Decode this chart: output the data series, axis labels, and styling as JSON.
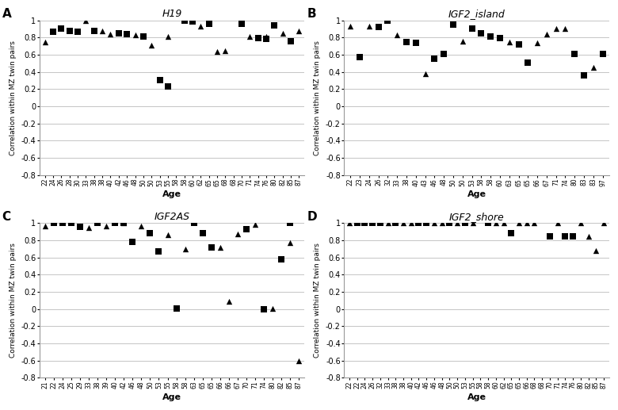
{
  "panels": [
    {
      "label": "A",
      "title": "H19",
      "x_labels": [
        "22",
        "24",
        "26",
        "28",
        "30",
        "33",
        "38",
        "38",
        "40",
        "42",
        "46",
        "48",
        "50",
        "50",
        "53",
        "55",
        "58",
        "58",
        "60",
        "62",
        "65",
        "65",
        "68",
        "68",
        "70",
        "71",
        "74",
        "76",
        "80",
        "82",
        "85",
        "87"
      ],
      "squares": [
        null,
        0.87,
        0.9,
        0.88,
        0.87,
        null,
        0.88,
        null,
        null,
        0.85,
        0.84,
        null,
        0.81,
        null,
        0.3,
        0.23,
        null,
        1.0,
        0.99,
        null,
        0.96,
        null,
        null,
        null,
        0.96,
        null,
        0.79,
        0.78,
        0.94,
        null,
        0.76,
        null
      ],
      "triangles": [
        0.75,
        null,
        null,
        null,
        null,
        1.0,
        null,
        0.88,
        0.84,
        null,
        null,
        0.83,
        null,
        0.71,
        null,
        0.81,
        null,
        null,
        null,
        0.93,
        null,
        0.64,
        0.65,
        null,
        null,
        0.81,
        null,
        0.81,
        null,
        0.85,
        null,
        0.88
      ]
    },
    {
      "label": "B",
      "title": "IGF2_island",
      "x_labels": [
        "22",
        "23",
        "24",
        "26",
        "32",
        "33",
        "38",
        "40",
        "43",
        "46",
        "48",
        "50",
        "50",
        "53",
        "58",
        "58",
        "60",
        "63",
        "65",
        "65",
        "66",
        "67",
        "71",
        "74",
        "80",
        "83",
        "83",
        "97"
      ],
      "squares": [
        null,
        0.57,
        null,
        0.92,
        1.0,
        null,
        0.75,
        0.74,
        null,
        0.55,
        0.61,
        0.95,
        null,
        0.9,
        0.85,
        0.81,
        0.79,
        null,
        0.72,
        0.51,
        null,
        null,
        null,
        null,
        0.61,
        0.36,
        null,
        0.61
      ],
      "triangles": [
        0.93,
        null,
        0.93,
        null,
        null,
        0.83,
        null,
        null,
        0.38,
        null,
        null,
        null,
        0.76,
        null,
        null,
        null,
        null,
        0.75,
        null,
        null,
        0.74,
        0.84,
        0.9,
        0.9,
        null,
        null,
        0.45,
        null
      ]
    },
    {
      "label": "C",
      "title": "IGF2AS",
      "x_labels": [
        "21",
        "22",
        "24",
        "25",
        "29",
        "33",
        "38",
        "39",
        "40",
        "42",
        "46",
        "48",
        "50",
        "53",
        "55",
        "58",
        "58",
        "63",
        "65",
        "65",
        "66",
        "66",
        "67",
        "70",
        "71",
        "74",
        "80",
        "82",
        "85",
        "87"
      ],
      "squares": [
        null,
        1.0,
        1.0,
        1.0,
        0.96,
        null,
        1.0,
        null,
        1.0,
        1.0,
        0.78,
        null,
        0.88,
        0.67,
        null,
        0.01,
        null,
        1.0,
        0.88,
        0.72,
        null,
        null,
        null,
        0.93,
        null,
        0.0,
        null,
        0.58,
        1.0,
        null
      ],
      "triangles": [
        0.97,
        null,
        null,
        null,
        null,
        0.95,
        null,
        0.97,
        null,
        1.0,
        null,
        0.97,
        null,
        null,
        0.86,
        null,
        0.7,
        null,
        null,
        null,
        0.72,
        0.09,
        0.87,
        null,
        0.98,
        null,
        0.01,
        null,
        0.77,
        -0.6
      ]
    },
    {
      "label": "D",
      "title": "IGF2_shore",
      "x_labels": [
        "22",
        "22",
        "24",
        "26",
        "32",
        "33",
        "38",
        "38",
        "40",
        "42",
        "46",
        "46",
        "48",
        "50",
        "50",
        "53",
        "55",
        "58",
        "58",
        "60",
        "62",
        "65",
        "65",
        "66",
        "68",
        "68",
        "70",
        "71",
        "74",
        "76",
        "80",
        "82",
        "85",
        "87"
      ],
      "squares": [
        null,
        1.0,
        1.0,
        1.0,
        1.0,
        null,
        1.0,
        null,
        null,
        1.0,
        1.0,
        null,
        null,
        1.0,
        null,
        1.0,
        null,
        null,
        1.0,
        null,
        null,
        0.88,
        null,
        null,
        null,
        null,
        0.85,
        null,
        0.85,
        0.85,
        null,
        null,
        null,
        null
      ],
      "triangles": [
        1.0,
        null,
        null,
        null,
        null,
        1.0,
        null,
        1.0,
        1.0,
        null,
        null,
        1.0,
        1.0,
        null,
        1.0,
        null,
        1.0,
        null,
        null,
        1.0,
        1.0,
        null,
        1.0,
        1.0,
        1.0,
        null,
        null,
        1.0,
        null,
        null,
        1.0,
        0.85,
        0.68,
        1.0
      ]
    }
  ],
  "ylabel": "Correlation within MZ twin pairs",
  "xlabel": "Age",
  "ylim": [
    -0.8,
    1.0
  ],
  "yticks": [
    -0.8,
    -0.6,
    -0.4,
    -0.2,
    0.0,
    0.2,
    0.4,
    0.6,
    0.8,
    1.0
  ],
  "ytick_labels": [
    "-0.8",
    "-0.6",
    "-0.4",
    "-0.2",
    "0",
    "0.2",
    "0.4",
    "0.6",
    "0.8",
    "1"
  ],
  "marker_square": "s",
  "marker_triangle": "^",
  "marker_color": "#000000",
  "marker_size": 28,
  "grid_color": "#bbbbbb",
  "bg_color": "#ffffff"
}
